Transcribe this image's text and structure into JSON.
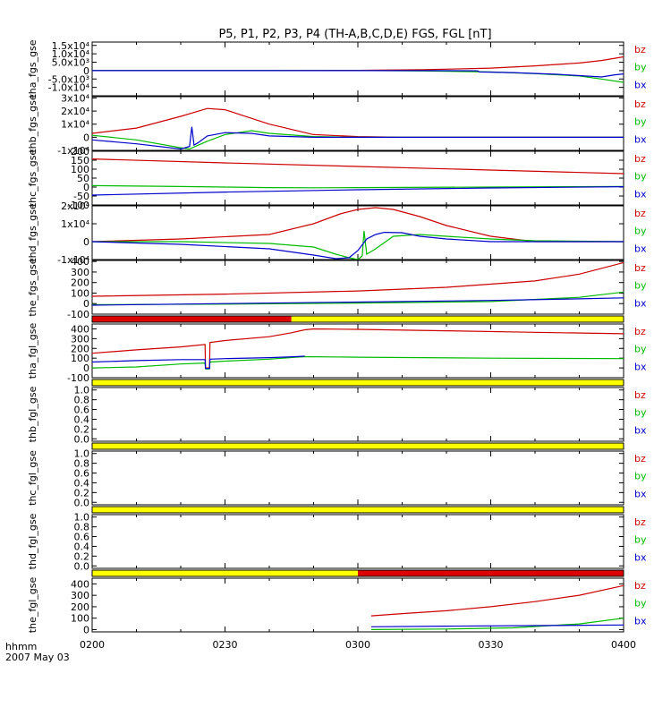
{
  "title": "P5, P1, P2, P3, P4 (TH-A,B,C,D,E) FGS, FGL [nT]",
  "time_axis": {
    "tick_labels": [
      "0200",
      "0230",
      "0300",
      "0330",
      "0400"
    ],
    "corner_label_1": "hhmm",
    "corner_label_2": "2007 May 03"
  },
  "colors": {
    "bz": "#cc0000",
    "by": "#00bb00",
    "bx": "#0000cc",
    "bar_yellow": "#ffff00",
    "bar_red": "#dd0000"
  },
  "legend": [
    "bz",
    "by",
    "bx"
  ],
  "chart_data": [
    {
      "type": "line",
      "ylabel": "tha_fgs_gse",
      "ylim": [
        -15000,
        17000
      ],
      "y_ticks": [
        {
          "v": 15000,
          "label": "1.5x10⁴"
        },
        {
          "v": 10000,
          "label": "1.0x10⁴"
        },
        {
          "v": 5000,
          "label": "5.0x10³"
        },
        {
          "v": 0,
          "label": "0"
        },
        {
          "v": -5000,
          "label": "-5.0x10³"
        },
        {
          "v": -10000,
          "label": "-1.0x10⁴"
        }
      ],
      "series": [
        {
          "name": "bz",
          "x": [
            0,
            20,
            40,
            60,
            75,
            90,
            100,
            110,
            115,
            120
          ],
          "y": [
            0,
            10,
            50,
            150,
            500,
            1500,
            2800,
            4500,
            6000,
            8200
          ]
        },
        {
          "name": "by",
          "x": [
            0,
            20,
            40,
            60,
            75,
            90,
            100,
            110,
            115,
            120
          ],
          "y": [
            0,
            5,
            20,
            40,
            -200,
            -800,
            -1800,
            -3200,
            -5000,
            -7000
          ]
        },
        {
          "name": "bx",
          "x": [
            0,
            20,
            40,
            60,
            75,
            87,
            87.5,
            95,
            105,
            110,
            115,
            118,
            120
          ],
          "y": [
            0,
            0,
            0,
            0,
            0,
            -100,
            -800,
            -1200,
            -2200,
            -3000,
            -3800,
            -2500,
            -2000
          ]
        }
      ]
    },
    {
      "type": "line",
      "ylabel": "thb_fgs_gse",
      "ylim": [
        -10000,
        31000
      ],
      "y_ticks": [
        {
          "v": 30000,
          "label": "3x10⁴"
        },
        {
          "v": 20000,
          "label": "2x10⁴"
        },
        {
          "v": 10000,
          "label": "1x10⁴"
        },
        {
          "v": 0,
          "label": "0"
        },
        {
          "v": -10000,
          "label": "-1x10⁴"
        }
      ],
      "series": [
        {
          "name": "bz",
          "x": [
            0,
            10,
            20,
            26,
            30,
            40,
            50,
            60,
            70,
            80,
            120
          ],
          "y": [
            3000,
            7000,
            16000,
            22000,
            21000,
            10000,
            2000,
            500,
            0,
            0,
            0
          ]
        },
        {
          "name": "by",
          "x": [
            0,
            10,
            20,
            22,
            24,
            26,
            30,
            36,
            40,
            50,
            60,
            120
          ],
          "y": [
            1500,
            -2000,
            -8000,
            -9000,
            -6000,
            -3000,
            2000,
            5000,
            3000,
            500,
            0,
            0
          ]
        },
        {
          "name": "bx",
          "x": [
            0,
            10,
            20,
            22,
            22.5,
            23,
            24,
            26,
            30,
            36,
            40,
            50,
            60,
            120
          ],
          "y": [
            -2000,
            -5000,
            -9000,
            -7000,
            8000,
            -6000,
            -4000,
            1000,
            3500,
            3000,
            1000,
            0,
            0,
            0
          ]
        }
      ]
    },
    {
      "type": "line",
      "ylabel": "thc_fgs_gse",
      "ylim": [
        -100,
        200
      ],
      "y_ticks": [
        {
          "v": 200,
          "label": "200"
        },
        {
          "v": 150,
          "label": "150"
        },
        {
          "v": 100,
          "label": "100"
        },
        {
          "v": 50,
          "label": "50"
        },
        {
          "v": 0,
          "label": "0"
        },
        {
          "v": -50,
          "label": "-50"
        },
        {
          "v": -100,
          "label": "-100"
        }
      ],
      "series": [
        {
          "name": "bz",
          "x": [
            0,
            30,
            60,
            90,
            120
          ],
          "y": [
            157,
            135,
            115,
            95,
            75
          ]
        },
        {
          "name": "by",
          "x": [
            0,
            20,
            30,
            40,
            50,
            60,
            90,
            120
          ],
          "y": [
            8,
            3,
            0,
            -3,
            -4,
            -3,
            0,
            3
          ]
        },
        {
          "name": "bx",
          "x": [
            0,
            30,
            60,
            90,
            120
          ],
          "y": [
            -45,
            -28,
            -15,
            -5,
            2
          ]
        }
      ]
    },
    {
      "type": "line",
      "ylabel": "thd_fgs_gse",
      "ylim": [
        -10000,
        20000
      ],
      "y_ticks": [
        {
          "v": 20000,
          "label": "2x10⁴"
        },
        {
          "v": 10000,
          "label": "1x10⁴"
        },
        {
          "v": 0,
          "label": "0"
        },
        {
          "v": -10000,
          "label": "-1x10⁴"
        }
      ],
      "series": [
        {
          "name": "bz",
          "x": [
            0,
            20,
            40,
            50,
            56,
            60,
            64,
            68,
            74,
            80,
            90,
            100,
            120
          ],
          "y": [
            0,
            1500,
            4000,
            10000,
            15500,
            18000,
            19000,
            18000,
            14000,
            9000,
            3000,
            0,
            0
          ]
        },
        {
          "name": "by",
          "x": [
            0,
            20,
            40,
            50,
            55,
            58,
            60,
            61,
            61.4,
            62,
            64,
            68,
            74,
            80,
            90,
            100,
            120
          ],
          "y": [
            0,
            0,
            -1000,
            -3000,
            -7000,
            -9000,
            -10000,
            -8000,
            6000,
            -7000,
            -4000,
            3000,
            4000,
            3000,
            1500,
            500,
            0
          ]
        },
        {
          "name": "bx",
          "x": [
            0,
            20,
            40,
            50,
            55,
            58,
            60,
            62,
            64,
            66,
            70,
            74,
            80,
            90,
            100,
            120
          ],
          "y": [
            0,
            -1500,
            -4000,
            -7500,
            -9500,
            -9000,
            -5000,
            1500,
            4000,
            5200,
            5000,
            3000,
            1500,
            0,
            0,
            0
          ]
        }
      ]
    },
    {
      "type": "line",
      "ylabel": "the_fgs_gse",
      "ylim": [
        -100,
        410
      ],
      "y_ticks": [
        {
          "v": 400,
          "label": "400"
        },
        {
          "v": 300,
          "label": "300"
        },
        {
          "v": 200,
          "label": "200"
        },
        {
          "v": 100,
          "label": "100"
        },
        {
          "v": 0,
          "label": "0"
        },
        {
          "v": -100,
          "label": "-100"
        }
      ],
      "series": [
        {
          "name": "bz",
          "x": [
            0,
            30,
            60,
            80,
            100,
            110,
            120
          ],
          "y": [
            70,
            90,
            120,
            155,
            215,
            280,
            390
          ]
        },
        {
          "name": "by",
          "x": [
            0,
            30,
            60,
            90,
            110,
            120
          ],
          "y": [
            -10,
            -5,
            5,
            20,
            60,
            110
          ]
        },
        {
          "name": "bx",
          "x": [
            0,
            30,
            60,
            90,
            110,
            120
          ],
          "y": [
            -15,
            0,
            15,
            30,
            45,
            55
          ]
        }
      ]
    },
    {
      "type": "line",
      "ylabel": "tha_fgl_gse",
      "ylim": [
        -100,
        450
      ],
      "y_ticks": [
        {
          "v": 400,
          "label": "400"
        },
        {
          "v": 300,
          "label": "300"
        },
        {
          "v": 200,
          "label": "200"
        },
        {
          "v": 100,
          "label": "100"
        },
        {
          "v": 0,
          "label": "0"
        },
        {
          "v": -100,
          "label": "-100"
        }
      ],
      "status_bar": [
        {
          "from": 0,
          "to": 45,
          "color": "bar_red"
        },
        {
          "from": 45,
          "to": 120,
          "color": "bar_yellow"
        }
      ],
      "series": [
        {
          "name": "bz",
          "x": [
            0,
            10,
            20,
            25.5,
            25.6,
            26.5,
            26.6,
            30,
            40,
            45,
            48,
            50,
            60,
            80,
            100,
            120
          ],
          "y": [
            150,
            185,
            215,
            240,
            0,
            0,
            260,
            280,
            320,
            360,
            390,
            400,
            395,
            380,
            365,
            350
          ]
        },
        {
          "name": "by",
          "x": [
            0,
            10,
            20,
            25.5,
            25.6,
            26.5,
            26.6,
            30,
            40,
            46,
            48,
            60,
            90,
            120
          ],
          "y": [
            0,
            10,
            40,
            50,
            -10,
            -10,
            60,
            70,
            90,
            110,
            115,
            110,
            100,
            95
          ]
        },
        {
          "name": "bx",
          "x": [
            0,
            10,
            20,
            25.5,
            25.6,
            26.5,
            26.6,
            30,
            40,
            46,
            48
          ],
          "y": [
            60,
            75,
            85,
            85,
            -5,
            -5,
            90,
            95,
            105,
            115,
            120
          ]
        }
      ]
    },
    {
      "type": "line",
      "ylabel": "thb_fgl_gse",
      "ylim": [
        -0.05,
        1.05
      ],
      "y_ticks": [
        {
          "v": 1.0,
          "label": "1.0"
        },
        {
          "v": 0.8,
          "label": "0.8"
        },
        {
          "v": 0.6,
          "label": "0.6"
        },
        {
          "v": 0.4,
          "label": "0.4"
        },
        {
          "v": 0.2,
          "label": "0.2"
        },
        {
          "v": 0.0,
          "label": "0.0"
        }
      ],
      "status_bar": [
        {
          "from": 0,
          "to": 120,
          "color": "bar_yellow"
        }
      ],
      "series": []
    },
    {
      "type": "line",
      "ylabel": "thc_fgl_gse",
      "ylim": [
        -0.05,
        1.05
      ],
      "y_ticks": [
        {
          "v": 1.0,
          "label": "1.0"
        },
        {
          "v": 0.8,
          "label": "0.8"
        },
        {
          "v": 0.6,
          "label": "0.6"
        },
        {
          "v": 0.4,
          "label": "0.4"
        },
        {
          "v": 0.2,
          "label": "0.2"
        },
        {
          "v": 0.0,
          "label": "0.0"
        }
      ],
      "status_bar": [
        {
          "from": 0,
          "to": 120,
          "color": "bar_yellow"
        }
      ],
      "series": []
    },
    {
      "type": "line",
      "ylabel": "thd_fgl_gse",
      "ylim": [
        -0.05,
        1.05
      ],
      "y_ticks": [
        {
          "v": 1.0,
          "label": "1.0"
        },
        {
          "v": 0.8,
          "label": "0.8"
        },
        {
          "v": 0.6,
          "label": "0.6"
        },
        {
          "v": 0.4,
          "label": "0.4"
        },
        {
          "v": 0.2,
          "label": "0.2"
        },
        {
          "v": 0.0,
          "label": "0.0"
        }
      ],
      "status_bar": [
        {
          "from": 0,
          "to": 120,
          "color": "bar_yellow"
        }
      ],
      "series": []
    },
    {
      "type": "line",
      "ylabel": "the_fgl_gse",
      "ylim": [
        -20,
        450
      ],
      "y_ticks": [
        {
          "v": 400,
          "label": "400"
        },
        {
          "v": 300,
          "label": "300"
        },
        {
          "v": 200,
          "label": "200"
        },
        {
          "v": 100,
          "label": "100"
        },
        {
          "v": 0,
          "label": "0"
        }
      ],
      "status_bar": [
        {
          "from": 0,
          "to": 60,
          "color": "bar_yellow"
        },
        {
          "from": 60,
          "to": 120,
          "color": "bar_red"
        }
      ],
      "series": [
        {
          "name": "bz",
          "x": [
            63,
            70,
            80,
            90,
            100,
            110,
            120
          ],
          "y": [
            120,
            140,
            165,
            200,
            245,
            300,
            385
          ]
        },
        {
          "name": "by",
          "x": [
            63,
            80,
            95,
            110,
            120
          ],
          "y": [
            0,
            5,
            15,
            50,
            100
          ]
        },
        {
          "name": "bx",
          "x": [
            63,
            80,
            100,
            120
          ],
          "y": [
            25,
            30,
            35,
            40
          ]
        }
      ]
    }
  ]
}
